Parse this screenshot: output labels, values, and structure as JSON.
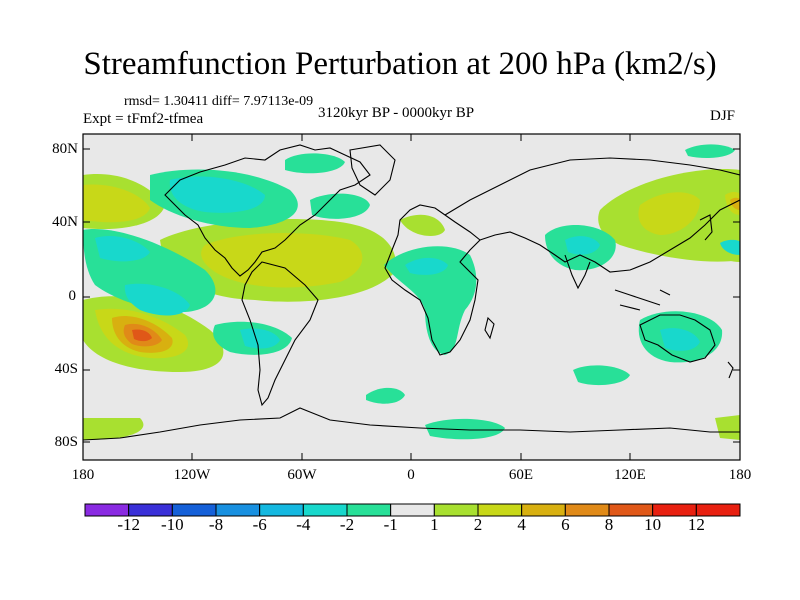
{
  "title": "Streamfunction Perturbation at 200 hPa (km2/s)",
  "stats": "rmsd= 1.30411 diff= 7.97113e-09",
  "experiment": "Expt = tFmf2-tfmea",
  "period": "3120kyr BP - 0000kyr BP",
  "season": "DJF",
  "y_axis_labels": [
    "80N",
    "40N",
    "0",
    "40S",
    "80S"
  ],
  "x_axis_labels": [
    "180",
    "120W",
    "60W",
    "0",
    "60E",
    "120E",
    "180"
  ],
  "colorbar": {
    "labels": [
      "-12",
      "-10",
      "-8",
      "-6",
      "-4",
      "-2",
      "-1",
      "1",
      "2",
      "4",
      "6",
      "8",
      "10",
      "12"
    ],
    "colors": [
      "#8a2be2",
      "#3030d8",
      "#1560d8",
      "#1890e0",
      "#14b8e0",
      "#18d8cc",
      "#28e098",
      "#e8e8e8",
      "#a8e030",
      "#c8d818",
      "#d8b010",
      "#e08a18",
      "#e05818",
      "#e82010"
    ]
  },
  "colors": {
    "land_ocean_background": "#e8e8e8",
    "coastline": "#000000"
  }
}
